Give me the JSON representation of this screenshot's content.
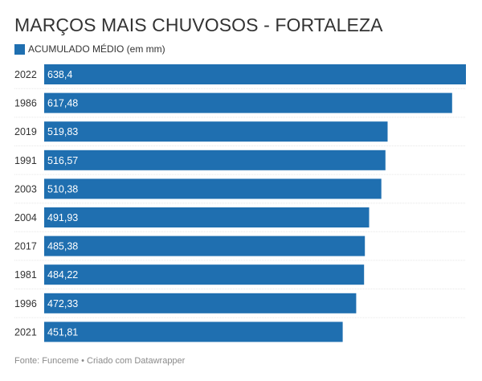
{
  "colors": {
    "bar": "#1f6fb0",
    "separator": "#e6e6e6",
    "text": "#333333",
    "bar_label": "#ffffff",
    "footer": "#8a8a8a"
  },
  "chart_data": {
    "type": "bar",
    "orientation": "horizontal",
    "title": "MARÇOS MAIS CHUVOSOS - FORTALEZA",
    "legend_position": "top-left",
    "series": [
      {
        "name": "ACUMULADO MÉDIO (em mm)",
        "values": [
          638.4,
          617.48,
          519.83,
          516.57,
          510.38,
          491.93,
          485.38,
          484.22,
          472.33,
          451.81
        ],
        "labels": [
          "638,4",
          "617,48",
          "519,83",
          "516,57",
          "510,38",
          "491,93",
          "485,38",
          "484,22",
          "472,33",
          "451,81"
        ]
      }
    ],
    "categories": [
      "2022",
      "1986",
      "2019",
      "1991",
      "2003",
      "2004",
      "2017",
      "1981",
      "1996",
      "2021"
    ],
    "xlim": [
      0,
      638.4
    ],
    "grid": false
  },
  "footer": "Fonte: Funceme • Criado com Datawrapper"
}
